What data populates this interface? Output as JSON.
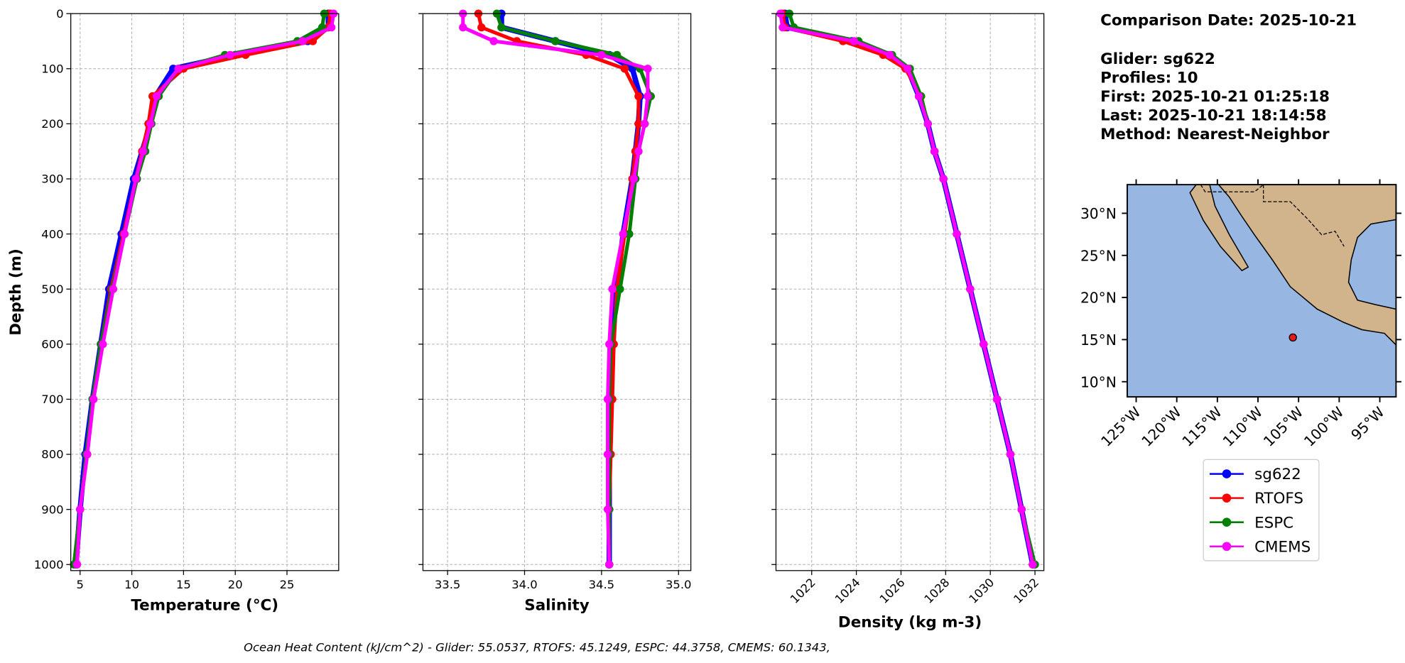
{
  "info": [
    "Comparison Date: 2025-10-21",
    "Glider: sg622",
    "Profiles: 10",
    "First: 2025-10-21 01:25:18",
    "Last: 2025-10-21 18:14:58",
    "Method: Nearest-Neighbor"
  ],
  "footer": "Ocean Heat Content (kJ/cm^2) - Glider: 55.0537,  RTOFS: 45.1249,  ESPC: 44.3758,  CMEMS: 60.1343,",
  "chart_data": [
    {
      "type": "line",
      "xlabel": "Temperature (°C)",
      "ylabel": "Depth (m)",
      "yticklabels": true,
      "grid": true,
      "xlim": [
        4.1,
        30
      ],
      "xticks": [
        5,
        10,
        15,
        20,
        25
      ],
      "ylim": [
        1011,
        0
      ],
      "yticks": [
        0,
        100,
        200,
        300,
        400,
        500,
        600,
        700,
        800,
        900,
        1000
      ],
      "y": [
        0,
        25,
        50,
        75,
        100,
        150,
        200,
        250,
        300,
        400,
        500,
        600,
        700,
        800,
        900,
        1000
      ],
      "series": [
        {
          "name": "sg622",
          "color": "#0000ff",
          "values": [
            29.0,
            29.0,
            27.0,
            20.0,
            14.0,
            12.3,
            11.8,
            11.0,
            10.2,
            9.0,
            7.8,
            7.0,
            6.2,
            5.5,
            5.0,
            4.6
          ]
        },
        {
          "name": "RTOFS",
          "color": "#ff0000",
          "values": [
            29.2,
            29.0,
            27.5,
            21.0,
            15.0,
            12.0,
            11.6,
            11.0,
            10.4,
            9.2,
            8.0,
            7.0,
            6.2,
            5.6,
            5.0,
            4.7
          ]
        },
        {
          "name": "ESPC",
          "color": "#008000",
          "values": [
            28.6,
            28.4,
            26.0,
            19.0,
            14.5,
            12.6,
            11.9,
            11.3,
            10.5,
            9.3,
            8.1,
            7.0,
            6.2,
            5.6,
            5.0,
            4.4
          ]
        },
        {
          "name": "CMEMS",
          "color": "#ff00ff",
          "values": [
            29.5,
            29.3,
            26.5,
            19.5,
            14.5,
            12.4,
            11.8,
            11.1,
            10.4,
            9.3,
            8.2,
            7.2,
            6.3,
            5.7,
            5.0,
            4.7
          ]
        }
      ]
    },
    {
      "type": "line",
      "xlabel": "Salinity",
      "yticklabels": false,
      "grid": true,
      "xlim": [
        33.34,
        35.08
      ],
      "xticks": [
        33.5,
        {
          "value": 34,
          "label": "34.0"
        },
        34.5,
        {
          "value": 35,
          "label": "35.0"
        }
      ],
      "ylim": [
        1011,
        0
      ],
      "yticks": [
        0,
        100,
        200,
        300,
        400,
        500,
        600,
        700,
        800,
        900,
        1000
      ],
      "y": [
        0,
        25,
        50,
        75,
        100,
        150,
        200,
        250,
        300,
        400,
        500,
        600,
        700,
        800,
        900,
        1000
      ],
      "series": [
        {
          "name": "sg622",
          "color": "#0000ff",
          "values": [
            33.85,
            33.85,
            34.2,
            34.55,
            34.7,
            34.75,
            34.74,
            34.72,
            34.7,
            34.64,
            34.6,
            34.56,
            34.55,
            34.55,
            34.55,
            34.55
          ]
        },
        {
          "name": "RTOFS",
          "color": "#ff0000",
          "values": [
            33.7,
            33.72,
            33.95,
            34.4,
            34.65,
            34.74,
            34.74,
            34.72,
            34.7,
            34.65,
            34.6,
            34.58,
            34.57,
            34.56,
            34.55,
            34.55
          ]
        },
        {
          "name": "ESPC",
          "color": "#008000",
          "values": [
            33.82,
            33.85,
            34.2,
            34.6,
            34.75,
            34.82,
            34.78,
            34.74,
            34.72,
            34.68,
            34.62,
            34.56,
            34.55,
            34.55,
            34.55,
            34.55
          ]
        },
        {
          "name": "CMEMS",
          "color": "#ff00ff",
          "values": [
            33.6,
            33.6,
            33.8,
            34.5,
            34.8,
            34.8,
            34.78,
            34.74,
            34.71,
            34.64,
            34.57,
            34.55,
            34.54,
            34.54,
            34.54,
            34.55
          ]
        }
      ]
    },
    {
      "type": "line",
      "xlabel": "Density (kg m-3)",
      "yticklabels": false,
      "grid": true,
      "xtick_rotation": 45,
      "xlim": [
        1020.4,
        1032.4
      ],
      "xticks": [
        1022,
        1024,
        1026,
        1028,
        1030,
        1032
      ],
      "ylim": [
        1011,
        0
      ],
      "yticks": [
        0,
        100,
        200,
        300,
        400,
        500,
        600,
        700,
        800,
        900,
        1000
      ],
      "y": [
        0,
        25,
        50,
        75,
        100,
        150,
        200,
        250,
        300,
        400,
        500,
        600,
        700,
        800,
        900,
        1000
      ],
      "series": [
        {
          "name": "sg622",
          "color": "#0000ff",
          "values": [
            1020.8,
            1020.9,
            1023.8,
            1025.4,
            1026.3,
            1026.8,
            1027.2,
            1027.5,
            1027.9,
            1028.5,
            1029.1,
            1029.7,
            1030.3,
            1030.9,
            1031.4,
            1031.9
          ]
        },
        {
          "name": "RTOFS",
          "color": "#ff0000",
          "values": [
            1020.7,
            1020.8,
            1023.4,
            1025.2,
            1026.2,
            1026.9,
            1027.2,
            1027.5,
            1027.9,
            1028.5,
            1029.1,
            1029.7,
            1030.3,
            1030.9,
            1031.4,
            1031.9
          ]
        },
        {
          "name": "ESPC",
          "color": "#008000",
          "values": [
            1021.0,
            1021.2,
            1024.1,
            1025.6,
            1026.4,
            1026.9,
            1027.2,
            1027.5,
            1027.9,
            1028.5,
            1029.1,
            1029.7,
            1030.3,
            1030.9,
            1031.4,
            1032.0
          ]
        },
        {
          "name": "CMEMS",
          "color": "#ff00ff",
          "values": [
            1020.6,
            1020.7,
            1023.9,
            1025.5,
            1026.3,
            1026.8,
            1027.2,
            1027.5,
            1027.9,
            1028.5,
            1029.1,
            1029.7,
            1030.3,
            1030.9,
            1031.4,
            1031.9
          ]
        }
      ]
    },
    {
      "type": "map",
      "xlim": [
        -126.1,
        -93
      ],
      "ylim": [
        8.2,
        33.4
      ],
      "xticks": [
        {
          "value": -125,
          "label": "125°W"
        },
        {
          "value": -120,
          "label": "120°W"
        },
        {
          "value": -115,
          "label": "115°W"
        },
        {
          "value": -110,
          "label": "110°W"
        },
        {
          "value": -105,
          "label": "105°W"
        },
        {
          "value": -100,
          "label": "100°W"
        },
        {
          "value": -95,
          "label": "95°W"
        }
      ],
      "yticks": [
        {
          "value": 10,
          "label": "10°N"
        },
        {
          "value": 15,
          "label": "15°N"
        },
        {
          "value": 20,
          "label": "20°N"
        },
        {
          "value": 25,
          "label": "25°N"
        },
        {
          "value": 30,
          "label": "30°N"
        }
      ],
      "points": [
        {
          "lon": -105.7,
          "lat": 15.25,
          "color": "#e41a1c"
        }
      ]
    }
  ]
}
